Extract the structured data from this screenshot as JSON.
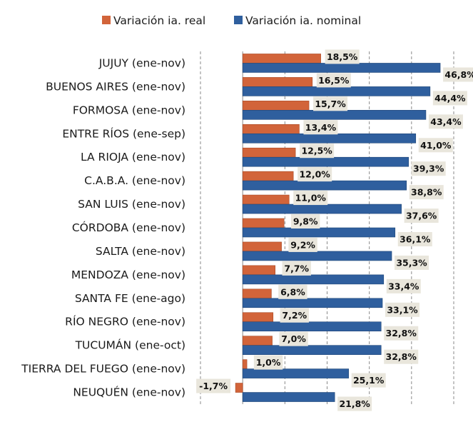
{
  "chart_data": {
    "type": "bar",
    "orientation": "horizontal",
    "title": "",
    "xlabel": "",
    "ylabel": "",
    "categories": [
      "JUJUY (ene-nov)",
      "BUENOS AIRES (ene-nov)",
      "FORMOSA (ene-nov)",
      "ENTRE RÍOS (ene-sep)",
      "LA RIOJA (ene-nov)",
      "C.A.B.A. (ene-nov)",
      "SAN LUIS (ene-nov)",
      "CÓRDOBA (ene-nov)",
      "SALTA (ene-nov)",
      "MENDOZA (ene-nov)",
      "SANTA FE (ene-ago)",
      "RÍO NEGRO (ene-nov)",
      "TUCUMÁN (ene-oct)",
      "TIERRA DEL FUEGO (ene-nov)",
      "NEUQUÉN (ene-nov)"
    ],
    "series": [
      {
        "name": "Variación ia. real",
        "color": "#d2643a",
        "values": [
          18.5,
          16.5,
          15.7,
          13.4,
          12.5,
          12.0,
          11.0,
          9.8,
          9.2,
          7.7,
          6.8,
          7.2,
          7.0,
          1.0,
          -1.7
        ],
        "labels": [
          "18,5%",
          "16,5%",
          "15,7%",
          "13,4%",
          "12,5%",
          "12,0%",
          "11,0%",
          "9,8%",
          "9,2%",
          "7,7%",
          "6,8%",
          "7,2%",
          "7,0%",
          "1,0%",
          "-1,7%"
        ]
      },
      {
        "name": "Variación ia. nominal",
        "color": "#2f5f9e",
        "values": [
          46.8,
          44.4,
          43.4,
          41.0,
          39.3,
          38.8,
          37.6,
          36.1,
          35.3,
          33.4,
          33.1,
          32.8,
          32.8,
          25.1,
          21.8
        ],
        "labels": [
          "46,8%",
          "44,4%",
          "43,4%",
          "41,0%",
          "39,3%",
          "38,8%",
          "37,6%",
          "36,1%",
          "35,3%",
          "33,4%",
          "33,1%",
          "32,8%",
          "32,8%",
          "25,1%",
          "21,8%"
        ]
      }
    ],
    "xlim": [
      -10,
      50
    ],
    "gridlines": [
      -10,
      10,
      20,
      30,
      40,
      50
    ],
    "grid": true,
    "legend": "top"
  }
}
